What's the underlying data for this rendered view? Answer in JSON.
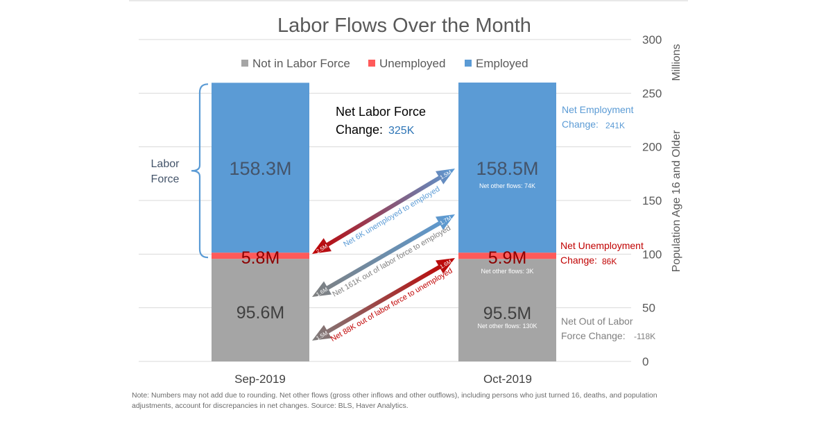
{
  "chart_data": {
    "type": "bar",
    "stacked": true,
    "title": "Labor Flows Over the Month",
    "categories": [
      "Sep-2019",
      "Oct-2019"
    ],
    "series": [
      {
        "name": "Not in Labor Force",
        "values": [
          95.6,
          95.5
        ],
        "labels": [
          "95.6M",
          "95.5M"
        ],
        "color": "#a5a5a5"
      },
      {
        "name": "Unemployed",
        "values": [
          5.8,
          5.9
        ],
        "labels": [
          "5.8M",
          "5.9M"
        ],
        "color": "#ff5a5a"
      },
      {
        "name": "Employed",
        "values": [
          158.3,
          158.5
        ],
        "labels": [
          "158.3M",
          "158.5M"
        ],
        "color": "#5b9bd5"
      }
    ],
    "ylabel": "Population Age 16 and Older",
    "yunit": "Millions",
    "ylim": [
      0,
      300
    ],
    "yticks": [
      0,
      50,
      100,
      150,
      200,
      250,
      300
    ],
    "legend_position": "top",
    "grid": true,
    "brace_label": [
      "Labor",
      "Force"
    ],
    "net_labor_force": {
      "line1": "Net Labor Force",
      "line2": "Change:",
      "value": "325K"
    },
    "net_other_flows": [
      {
        "text": "Net other flows:  74K",
        "series": "Employed"
      },
      {
        "text": "Net other flows:  3K",
        "series": "Unemployed"
      },
      {
        "text": "Net other flows:  130K",
        "series": "Not in Labor Force"
      }
    ],
    "flows": [
      {
        "label": "Net 6K unemployed to employed",
        "from_value": 2.5,
        "to_value": 1.5,
        "to_series": "Employed",
        "from_series": "Unemployed",
        "color_start": "#c00000",
        "color_end": "#5b9bd5"
      },
      {
        "label": "Net 161K out of labor force to employed",
        "from_value": 1.6,
        "to_value": 1.7,
        "to_series": "Employed",
        "from_series": "Not in Labor Force",
        "color_start": "#7f7f7f",
        "color_end": "#5b9bd5"
      },
      {
        "label": "Net 88K out of labor force to unemployed",
        "from_value": 1.5,
        "to_value": 1.6,
        "to_series": "Unemployed",
        "from_series": "Not in Labor Force",
        "color_start": "#7f7f7f",
        "color_end": "#c00000"
      }
    ],
    "right_annotations": [
      {
        "line1": "Net Employment",
        "line2": "Change:",
        "value": "241K",
        "color": "#5b9bd5"
      },
      {
        "line1": "Net Unemployment",
        "line2": "Change:",
        "value": "86K",
        "color": "#c00000"
      },
      {
        "line1": "Net Out of Labor",
        "line2": "Force Change:",
        "value": "-118K",
        "color": "#7f7f7f"
      }
    ]
  },
  "note": "Note: Numbers may not add due to rounding. Net other flows (gross other inflows and other outflows), including persons who just turned 16, deaths, and population adjustments, account  for discrepancies in net changes. Source: BLS, Haver Analytics."
}
